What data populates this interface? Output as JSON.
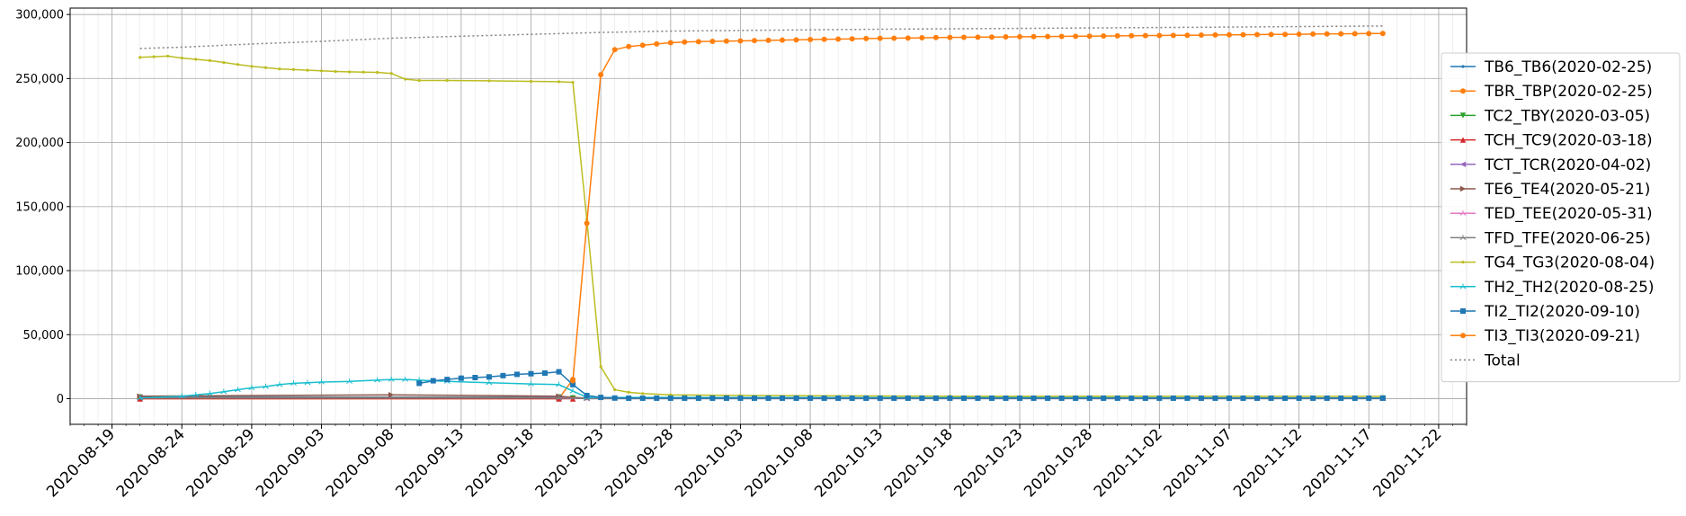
{
  "chart_data": {
    "type": "line",
    "grid": true,
    "legend_position": "right",
    "y_range": [
      -20000,
      305000
    ],
    "y_ticks": [
      0,
      50000,
      100000,
      150000,
      200000,
      250000,
      300000
    ],
    "y_tick_labels": [
      "0",
      "50,000",
      "100,000",
      "150,000",
      "200,000",
      "250,000",
      "300,000"
    ],
    "x_range": [
      "2020-08-16",
      "2020-11-24"
    ],
    "x_ticks": [
      "2020-08-19",
      "2020-08-24",
      "2020-08-29",
      "2020-09-03",
      "2020-09-08",
      "2020-09-13",
      "2020-09-18",
      "2020-09-23",
      "2020-09-28",
      "2020-10-03",
      "2020-10-08",
      "2020-10-13",
      "2020-10-18",
      "2020-10-23",
      "2020-10-28",
      "2020-11-02",
      "2020-11-07",
      "2020-11-12",
      "2020-11-17",
      "2020-11-22"
    ],
    "series": [
      {
        "name": "TB6_TB6(2020-02-25)",
        "color": "#1f77b4",
        "marker": "point",
        "linestyle": "solid",
        "points": [
          [
            "2020-08-21",
            1500
          ],
          [
            "2020-09-21",
            1000
          ],
          [
            "2020-09-22",
            300
          ],
          [
            "2020-09-26",
            300
          ],
          [
            "2020-10-31",
            300
          ],
          [
            "2020-11-18",
            300
          ]
        ]
      },
      {
        "name": "TBR_TBP(2020-02-25)",
        "color": "#ff7f0e",
        "marker": "circle",
        "linestyle": "solid",
        "points": [
          [
            "2020-08-21",
            0
          ],
          [
            "2020-09-20",
            0
          ],
          [
            "2020-09-21",
            15000
          ]
        ]
      },
      {
        "name": "TC2_TBY(2020-03-05)",
        "color": "#2ca02c",
        "marker": "triangle-down",
        "linestyle": "solid",
        "points": [
          [
            "2020-08-21",
            1200
          ],
          [
            "2020-09-20",
            1200
          ],
          [
            "2020-09-21",
            500
          ],
          [
            "2020-11-18",
            400
          ]
        ]
      },
      {
        "name": "TCH_TC9(2020-03-18)",
        "color": "#d62728",
        "marker": "triangle-up",
        "linestyle": "solid",
        "points": [
          [
            "2020-08-21",
            0
          ],
          [
            "2020-09-20",
            0
          ],
          [
            "2020-09-21",
            0
          ]
        ]
      },
      {
        "name": "TCT_TCR(2020-04-02)",
        "color": "#9467bd",
        "marker": "triangle-left",
        "linestyle": "solid",
        "points": [
          [
            "2020-08-21",
            1000
          ],
          [
            "2020-09-20",
            1000
          ],
          [
            "2020-09-22",
            200
          ],
          [
            "2020-11-18",
            200
          ]
        ]
      },
      {
        "name": "TE6_TE4(2020-05-21)",
        "color": "#8c564b",
        "marker": "triangle-right",
        "linestyle": "solid",
        "points": [
          [
            "2020-08-21",
            2000
          ],
          [
            "2020-09-08",
            3000
          ],
          [
            "2020-09-20",
            2000
          ],
          [
            "2020-09-22",
            300
          ],
          [
            "2020-11-18",
            300
          ]
        ]
      },
      {
        "name": "TED_TEE(2020-05-31)",
        "color": "#e377c2",
        "marker": "tri",
        "linestyle": "solid",
        "points": [
          [
            "2020-08-21",
            500
          ],
          [
            "2020-09-20",
            500
          ],
          [
            "2020-09-22",
            100
          ],
          [
            "2020-11-18",
            100
          ]
        ]
      },
      {
        "name": "TFD_TFE(2020-06-25)",
        "color": "#7f7f7f",
        "marker": "tri",
        "linestyle": "solid",
        "points": [
          [
            "2020-08-21",
            500
          ],
          [
            "2020-09-20",
            500
          ],
          [
            "2020-09-22",
            100
          ],
          [
            "2020-11-18",
            100
          ]
        ]
      },
      {
        "name": "TG4_TG3(2020-08-04)",
        "color": "#bcbd22",
        "marker": "point",
        "linestyle": "solid",
        "points": [
          [
            "2020-08-21",
            266500
          ],
          [
            "2020-08-22",
            267000
          ],
          [
            "2020-08-23",
            267500
          ],
          [
            "2020-08-24",
            266000
          ],
          [
            "2020-08-25",
            265000
          ],
          [
            "2020-08-26",
            264000
          ],
          [
            "2020-08-27",
            262500
          ],
          [
            "2020-08-28",
            261000
          ],
          [
            "2020-08-29",
            259500
          ],
          [
            "2020-08-30",
            258500
          ],
          [
            "2020-08-31",
            257500
          ],
          [
            "2020-09-01",
            257000
          ],
          [
            "2020-09-02",
            256500
          ],
          [
            "2020-09-03",
            256000
          ],
          [
            "2020-09-04",
            255500
          ],
          [
            "2020-09-05",
            255200
          ],
          [
            "2020-09-06",
            255000
          ],
          [
            "2020-09-07",
            254800
          ],
          [
            "2020-09-08",
            254000
          ],
          [
            "2020-09-09",
            249500
          ],
          [
            "2020-09-10",
            248500
          ],
          [
            "2020-09-12",
            248500
          ],
          [
            "2020-09-15",
            248200
          ],
          [
            "2020-09-18",
            247800
          ],
          [
            "2020-09-20",
            247500
          ],
          [
            "2020-09-21",
            247000
          ],
          [
            "2020-09-22",
            140000
          ],
          [
            "2020-09-23",
            25000
          ],
          [
            "2020-09-24",
            7000
          ],
          [
            "2020-09-25",
            5000
          ],
          [
            "2020-09-26",
            4000
          ],
          [
            "2020-09-28",
            3000
          ],
          [
            "2020-10-03",
            2500
          ],
          [
            "2020-10-18",
            2000
          ],
          [
            "2020-11-18",
            1800
          ]
        ]
      },
      {
        "name": "TH2_TH2(2020-08-25)",
        "color": "#17becf",
        "marker": "tri",
        "linestyle": "solid",
        "points": [
          [
            "2020-08-21",
            500
          ],
          [
            "2020-08-24",
            2000
          ],
          [
            "2020-08-25",
            3000
          ],
          [
            "2020-08-26",
            4000
          ],
          [
            "2020-08-27",
            5500
          ],
          [
            "2020-08-28",
            7000
          ],
          [
            "2020-08-29",
            8500
          ],
          [
            "2020-08-30",
            9500
          ],
          [
            "2020-08-31",
            11000
          ],
          [
            "2020-09-01",
            12000
          ],
          [
            "2020-09-02",
            12500
          ],
          [
            "2020-09-03",
            13000
          ],
          [
            "2020-09-05",
            13500
          ],
          [
            "2020-09-07",
            14500
          ],
          [
            "2020-09-08",
            15000
          ],
          [
            "2020-09-09",
            15000
          ],
          [
            "2020-09-10",
            14500
          ],
          [
            "2020-09-12",
            13500
          ],
          [
            "2020-09-15",
            12500
          ],
          [
            "2020-09-18",
            11500
          ],
          [
            "2020-09-20",
            11000
          ],
          [
            "2020-09-21",
            6000
          ],
          [
            "2020-09-22",
            1000
          ],
          [
            "2020-11-18",
            600
          ]
        ]
      },
      {
        "name": "TI2_TI2(2020-09-10)",
        "color": "#1f77b4",
        "marker": "square",
        "linestyle": "solid",
        "points": [
          [
            "2020-09-10",
            12000
          ],
          [
            "2020-09-11",
            14000
          ],
          [
            "2020-09-12",
            15000
          ],
          [
            "2020-09-13",
            16000
          ],
          [
            "2020-09-14",
            16500
          ],
          [
            "2020-09-15",
            17000
          ],
          [
            "2020-09-16",
            18000
          ],
          [
            "2020-09-17",
            19000
          ],
          [
            "2020-09-18",
            19500
          ],
          [
            "2020-09-19",
            20000
          ],
          [
            "2020-09-20",
            21000
          ],
          [
            "2020-09-21",
            11000
          ],
          [
            "2020-09-22",
            2500
          ],
          [
            "2020-09-23",
            1000
          ],
          [
            "2020-09-24",
            500
          ],
          [
            "2020-09-25",
            400
          ],
          [
            "2020-09-26",
            400
          ],
          [
            "2020-09-27",
            400
          ],
          [
            "2020-09-28",
            400
          ],
          [
            "2020-09-29",
            400
          ],
          [
            "2020-09-30",
            400
          ],
          [
            "2020-10-01",
            400
          ],
          [
            "2020-10-02",
            400
          ],
          [
            "2020-10-03",
            400
          ],
          [
            "2020-10-04",
            400
          ],
          [
            "2020-10-05",
            400
          ],
          [
            "2020-10-06",
            400
          ],
          [
            "2020-10-07",
            400
          ],
          [
            "2020-10-08",
            400
          ],
          [
            "2020-10-09",
            400
          ],
          [
            "2020-10-10",
            400
          ],
          [
            "2020-10-11",
            400
          ],
          [
            "2020-10-12",
            400
          ],
          [
            "2020-10-13",
            400
          ],
          [
            "2020-10-14",
            400
          ],
          [
            "2020-10-15",
            400
          ],
          [
            "2020-10-16",
            400
          ],
          [
            "2020-10-17",
            400
          ],
          [
            "2020-10-18",
            400
          ],
          [
            "2020-10-19",
            400
          ],
          [
            "2020-10-20",
            400
          ],
          [
            "2020-10-21",
            400
          ],
          [
            "2020-10-22",
            400
          ],
          [
            "2020-10-23",
            400
          ],
          [
            "2020-10-24",
            400
          ],
          [
            "2020-10-25",
            400
          ],
          [
            "2020-10-26",
            400
          ],
          [
            "2020-10-27",
            400
          ],
          [
            "2020-10-28",
            400
          ],
          [
            "2020-10-29",
            400
          ],
          [
            "2020-10-30",
            400
          ],
          [
            "2020-10-31",
            400
          ],
          [
            "2020-11-01",
            400
          ],
          [
            "2020-11-02",
            400
          ],
          [
            "2020-11-03",
            400
          ],
          [
            "2020-11-04",
            400
          ],
          [
            "2020-11-05",
            400
          ],
          [
            "2020-11-06",
            400
          ],
          [
            "2020-11-07",
            400
          ],
          [
            "2020-11-08",
            400
          ],
          [
            "2020-11-09",
            400
          ],
          [
            "2020-11-10",
            400
          ],
          [
            "2020-11-11",
            400
          ],
          [
            "2020-11-12",
            400
          ],
          [
            "2020-11-13",
            400
          ],
          [
            "2020-11-14",
            400
          ],
          [
            "2020-11-15",
            400
          ],
          [
            "2020-11-16",
            400
          ],
          [
            "2020-11-17",
            400
          ],
          [
            "2020-11-18",
            400
          ]
        ]
      },
      {
        "name": "TI3_TI3(2020-09-21)",
        "color": "#ff7f0e",
        "marker": "circle",
        "linestyle": "solid",
        "points": [
          [
            "2020-09-21",
            14000
          ],
          [
            "2020-09-22",
            137000
          ],
          [
            "2020-09-23",
            253000
          ],
          [
            "2020-09-24",
            272500
          ],
          [
            "2020-09-25",
            275000
          ],
          [
            "2020-09-26",
            276000
          ],
          [
            "2020-09-27",
            277000
          ],
          [
            "2020-09-28",
            278000
          ],
          [
            "2020-09-29",
            278500
          ],
          [
            "2020-09-30",
            278800
          ],
          [
            "2020-10-01",
            279000
          ],
          [
            "2020-10-02",
            279200
          ],
          [
            "2020-10-03",
            279400
          ],
          [
            "2020-10-04",
            279600
          ],
          [
            "2020-10-05",
            279800
          ],
          [
            "2020-10-06",
            280000
          ],
          [
            "2020-10-07",
            280200
          ],
          [
            "2020-10-08",
            280400
          ],
          [
            "2020-10-09",
            280600
          ],
          [
            "2020-10-10",
            280800
          ],
          [
            "2020-10-11",
            281000
          ],
          [
            "2020-10-12",
            281200
          ],
          [
            "2020-10-13",
            281400
          ],
          [
            "2020-10-14",
            281500
          ],
          [
            "2020-10-15",
            281600
          ],
          [
            "2020-10-16",
            281800
          ],
          [
            "2020-10-17",
            282000
          ],
          [
            "2020-10-18",
            282100
          ],
          [
            "2020-10-19",
            282200
          ],
          [
            "2020-10-20",
            282300
          ],
          [
            "2020-10-21",
            282400
          ],
          [
            "2020-10-22",
            282500
          ],
          [
            "2020-10-23",
            282600
          ],
          [
            "2020-10-24",
            282700
          ],
          [
            "2020-10-25",
            282800
          ],
          [
            "2020-10-26",
            282900
          ],
          [
            "2020-10-27",
            283000
          ],
          [
            "2020-10-28",
            283100
          ],
          [
            "2020-10-29",
            283200
          ],
          [
            "2020-10-30",
            283300
          ],
          [
            "2020-10-31",
            283400
          ],
          [
            "2020-11-01",
            283500
          ],
          [
            "2020-11-02",
            283600
          ],
          [
            "2020-11-03",
            283700
          ],
          [
            "2020-11-04",
            283800
          ],
          [
            "2020-11-05",
            283900
          ],
          [
            "2020-11-06",
            284000
          ],
          [
            "2020-11-07",
            284100
          ],
          [
            "2020-11-08",
            284200
          ],
          [
            "2020-11-09",
            284300
          ],
          [
            "2020-11-10",
            284400
          ],
          [
            "2020-11-11",
            284500
          ],
          [
            "2020-11-12",
            284600
          ],
          [
            "2020-11-13",
            284700
          ],
          [
            "2020-11-14",
            284800
          ],
          [
            "2020-11-15",
            284900
          ],
          [
            "2020-11-16",
            285000
          ],
          [
            "2020-11-17",
            285100
          ],
          [
            "2020-11-18",
            285200
          ]
        ]
      },
      {
        "name": "Total",
        "color": "#7f7f7f",
        "marker": "none",
        "linestyle": "dotted",
        "points": [
          [
            "2020-08-21",
            273500
          ],
          [
            "2020-08-24",
            274500
          ],
          [
            "2020-08-29",
            277000
          ],
          [
            "2020-09-03",
            279000
          ],
          [
            "2020-09-08",
            281500
          ],
          [
            "2020-09-13",
            283000
          ],
          [
            "2020-09-18",
            284500
          ],
          [
            "2020-09-23",
            286000
          ],
          [
            "2020-09-28",
            287000
          ],
          [
            "2020-10-03",
            287500
          ],
          [
            "2020-10-13",
            288500
          ],
          [
            "2020-10-28",
            289500
          ],
          [
            "2020-11-07",
            290200
          ],
          [
            "2020-11-18",
            291000
          ]
        ]
      }
    ]
  }
}
